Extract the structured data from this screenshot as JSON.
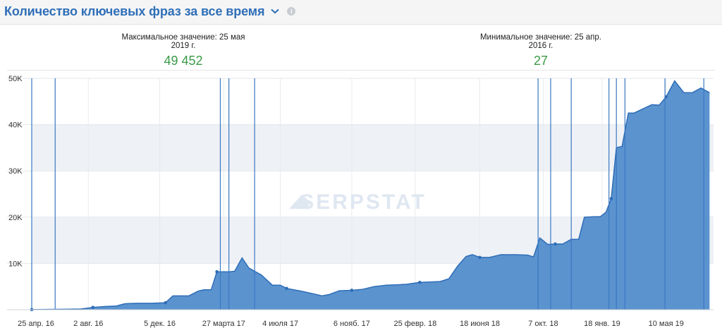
{
  "header": {
    "title": "Количество ключевых фраз за все время",
    "dropdown_icon": "chevron-down-icon",
    "info_icon": "info-icon",
    "info_glyph": "i"
  },
  "stats": {
    "max_label": "Максимальное значение: 25 мая 2019 г.",
    "max_value": "49 452",
    "min_label": "Минимальное значение: 25 апр. 2016 г.",
    "min_value": "27"
  },
  "colors": {
    "accent": "#2f6fb8",
    "area_fill": "#5b93cf",
    "area_line": "#2e6db7",
    "marker_line": "#3a78c2",
    "stat_green": "#3b9a47",
    "alt_band": "#eef1f6"
  },
  "watermark": "SERPSTAT",
  "chart_data": {
    "type": "area",
    "title": "Количество ключевых фраз за все время",
    "xlabel": "",
    "ylabel": "",
    "ylim": [
      0,
      50000
    ],
    "y_ticks": [
      {
        "value": 10000,
        "label": "10K"
      },
      {
        "value": 20000,
        "label": "20K"
      },
      {
        "value": 30000,
        "label": "30K"
      },
      {
        "value": 40000,
        "label": "40K"
      },
      {
        "value": 50000,
        "label": "50K"
      }
    ],
    "x_tick_labels": [
      "25 апр. 16",
      "2 авг. 16",
      "5 дек. 16",
      "27 марта 17",
      "4 июля 17",
      "6 нояб. 17",
      "25 февр. 18",
      "18 июня 18",
      "7 окт. 18",
      "18 янв. 19",
      "10 мая 19"
    ],
    "x_tick_dates": [
      "2016-04-25",
      "2016-08-02",
      "2016-12-05",
      "2017-03-27",
      "2017-07-04",
      "2017-11-06",
      "2018-02-25",
      "2018-06-18",
      "2018-10-07",
      "2019-01-18",
      "2019-05-10"
    ],
    "grid": true,
    "series": [
      {
        "values": [
          [
            "2016-04-25",
            27
          ],
          [
            "2016-05-20",
            60
          ],
          [
            "2016-06-20",
            100
          ],
          [
            "2016-07-20",
            150
          ],
          [
            "2016-08-10",
            500
          ],
          [
            "2016-09-01",
            700
          ],
          [
            "2016-09-20",
            800
          ],
          [
            "2016-10-05",
            1300
          ],
          [
            "2016-10-25",
            1400
          ],
          [
            "2016-11-20",
            1400
          ],
          [
            "2016-12-15",
            1500
          ],
          [
            "2016-12-28",
            3000
          ],
          [
            "2017-01-25",
            3000
          ],
          [
            "2017-02-10",
            4000
          ],
          [
            "2017-02-20",
            4300
          ],
          [
            "2017-03-05",
            4300
          ],
          [
            "2017-03-15",
            8200
          ],
          [
            "2017-04-05",
            8200
          ],
          [
            "2017-04-15",
            8300
          ],
          [
            "2017-04-28",
            11200
          ],
          [
            "2017-05-10",
            9000
          ],
          [
            "2017-06-01",
            7500
          ],
          [
            "2017-06-20",
            5300
          ],
          [
            "2017-07-04",
            5300
          ],
          [
            "2017-07-15",
            4600
          ],
          [
            "2017-08-10",
            4000
          ],
          [
            "2017-09-01",
            3400
          ],
          [
            "2017-09-15",
            3000
          ],
          [
            "2017-09-28",
            3300
          ],
          [
            "2017-10-15",
            4100
          ],
          [
            "2017-11-06",
            4200
          ],
          [
            "2017-11-25",
            4400
          ],
          [
            "2017-12-15",
            5000
          ],
          [
            "2018-01-05",
            5300
          ],
          [
            "2018-01-25",
            5400
          ],
          [
            "2018-02-10",
            5500
          ],
          [
            "2018-03-05",
            5900
          ],
          [
            "2018-03-25",
            6000
          ],
          [
            "2018-04-10",
            6100
          ],
          [
            "2018-04-25",
            6700
          ],
          [
            "2018-05-10",
            9400
          ],
          [
            "2018-05-25",
            11500
          ],
          [
            "2018-06-05",
            11900
          ],
          [
            "2018-06-18",
            11300
          ],
          [
            "2018-07-05",
            11300
          ],
          [
            "2018-07-25",
            11900
          ],
          [
            "2018-08-20",
            11900
          ],
          [
            "2018-09-10",
            11800
          ],
          [
            "2018-09-20",
            11400
          ],
          [
            "2018-10-01",
            15500
          ],
          [
            "2018-10-15",
            14100
          ],
          [
            "2018-10-28",
            14200
          ],
          [
            "2018-11-10",
            14200
          ],
          [
            "2018-11-25",
            15200
          ],
          [
            "2018-12-08",
            15200
          ],
          [
            "2018-12-18",
            20000
          ],
          [
            "2019-01-05",
            20100
          ],
          [
            "2019-01-15",
            20100
          ],
          [
            "2019-01-25",
            21100
          ],
          [
            "2019-02-03",
            24000
          ],
          [
            "2019-02-12",
            35000
          ],
          [
            "2019-02-22",
            35300
          ],
          [
            "2019-03-05",
            42500
          ],
          [
            "2019-03-15",
            42500
          ],
          [
            "2019-04-01",
            43500
          ],
          [
            "2019-04-15",
            44300
          ],
          [
            "2019-04-28",
            44200
          ],
          [
            "2019-05-10",
            46000
          ],
          [
            "2019-05-25",
            49452
          ],
          [
            "2019-06-10",
            46900
          ],
          [
            "2019-06-25",
            46900
          ],
          [
            "2019-07-10",
            47900
          ],
          [
            "2019-07-25",
            46900
          ]
        ]
      }
    ],
    "marker_points": [
      [
        "2016-04-25",
        27
      ],
      [
        "2016-08-10",
        500
      ],
      [
        "2016-12-15",
        1500
      ],
      [
        "2017-03-15",
        8200
      ],
      [
        "2017-07-15",
        4600
      ],
      [
        "2017-11-06",
        4200
      ],
      [
        "2018-03-05",
        5900
      ],
      [
        "2018-06-18",
        11300
      ],
      [
        "2018-10-28",
        14200
      ],
      [
        "2019-02-03",
        24000
      ],
      [
        "2019-05-10",
        46000
      ]
    ],
    "vertical_markers": [
      "2016-04-25",
      "2016-06-05",
      "2017-03-21",
      "2017-04-05",
      "2017-05-20",
      "2018-09-28",
      "2018-10-20",
      "2018-11-25",
      "2019-01-30",
      "2019-02-12",
      "2019-02-27",
      "2019-05-08",
      "2019-07-15"
    ],
    "x_range": [
      "2016-04-25",
      "2019-08-01"
    ]
  }
}
